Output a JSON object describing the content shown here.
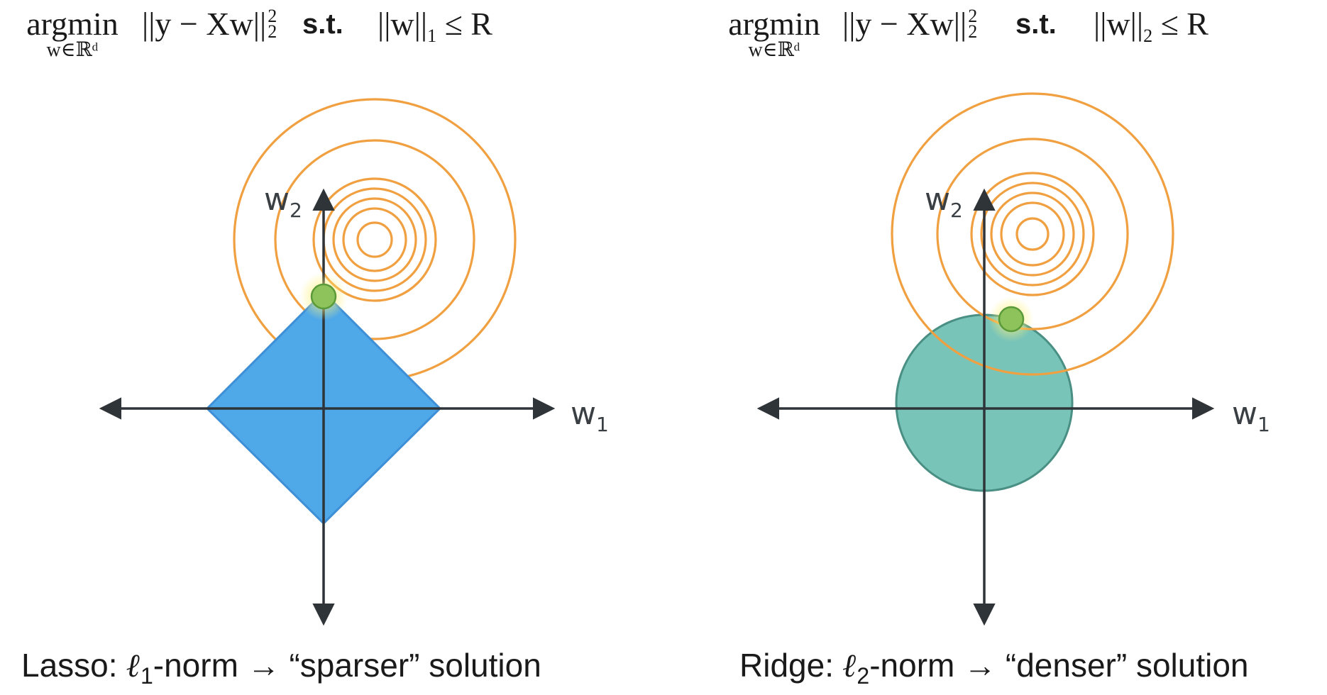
{
  "panels": [
    {
      "id": "lasso",
      "formula": {
        "argmin": "argmin",
        "subscript": "w∈ℝᵈ",
        "objective": "||y − Xw||",
        "objective_sup": "2",
        "objective_sub": "2",
        "st": "s.t.",
        "constraint_left": "||w||",
        "constraint_sub": "1",
        "constraint_right": "≤ R"
      },
      "axes": {
        "x_label": "w",
        "x_sub": "1",
        "y_label": "w",
        "y_sub": "2"
      },
      "constraint_shape": "diamond",
      "constraint_color": "#4fa8e8",
      "constraint_stroke": "#3f8fd6",
      "contour_color": "#f0a040",
      "solution_color": "#8dc35a",
      "caption": {
        "prefix": "Lasso: ",
        "ell": "ℓ",
        "ell_sub": "1",
        "suffix": "-norm →  “sparser” solution"
      }
    },
    {
      "id": "ridge",
      "formula": {
        "argmin": "argmin",
        "subscript": "w∈ℝᵈ",
        "objective": "||y − Xw||",
        "objective_sup": "2",
        "objective_sub": "2",
        "st": "s.t.",
        "constraint_left": "||w||",
        "constraint_sub": "2",
        "constraint_right": "≤ R"
      },
      "axes": {
        "x_label": "w",
        "x_sub": "1",
        "y_label": "w",
        "y_sub": "2"
      },
      "constraint_shape": "circle",
      "constraint_color": "#79c4b9",
      "constraint_stroke": "#4a8f84",
      "contour_color": "#f0a040",
      "solution_color": "#8dc35a",
      "caption": {
        "prefix": "Ridge: ",
        "ell": "ℓ",
        "ell_sub": "2",
        "suffix": "-norm →  “denser” solution"
      }
    }
  ]
}
